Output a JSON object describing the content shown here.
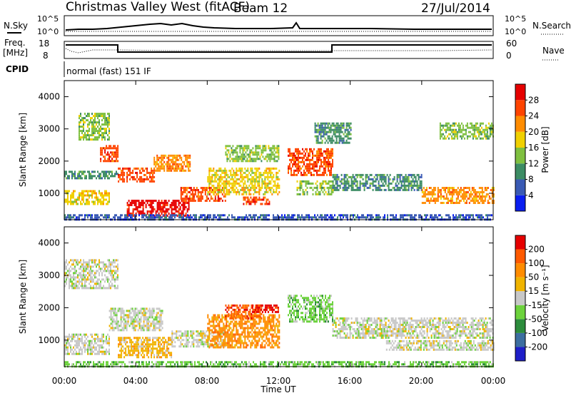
{
  "header": {
    "station": "Christmas Valley West (fitACF)",
    "beam": "Beam 12",
    "date": "27/Jul/2014"
  },
  "top_panels": {
    "nsky_label": "N.Sky",
    "nsky_ticks": [
      "10^5",
      "10^0"
    ],
    "nsearch_label": "N.Search",
    "nsearch_ticks": [
      "10^5",
      "10^0"
    ],
    "freq_label_1": "Freq.",
    "freq_label_2": "[MHz]",
    "freq_ticks": [
      "18",
      "8"
    ],
    "nave_label": "Nave",
    "nave_ticks": [
      "60",
      "0"
    ],
    "cpid_label": "CPID",
    "cpid_value": "normal (fast) 151 IF"
  },
  "colors": {
    "power_scale": [
      "#0a1ef0",
      "#3a5ab4",
      "#3c8c64",
      "#7fc040",
      "#f0d000",
      "#ff8c00",
      "#ff4400",
      "#e60000"
    ],
    "velocity_scale": [
      "#1e1ec8",
      "#3c6ea0",
      "#2c8c3c",
      "#6cd23c",
      "#c8c8c8",
      "#f0b400",
      "#ff8c00",
      "#ff5a00",
      "#e60000"
    ]
  },
  "chart_data": [
    {
      "type": "heatmap",
      "name": "Power",
      "ylabel": "Slant Range [km]",
      "colorbar_label": "Power [dB]",
      "colorbar_ticks": [
        "28",
        "24",
        "20",
        "16",
        "12",
        "8",
        "4"
      ],
      "x_ticks": [
        "00:00",
        "04:00",
        "08:00",
        "12:00",
        "16:00",
        "20:00",
        "00:00"
      ],
      "y_ticks": [
        "4000",
        "3000",
        "2000",
        "1000"
      ],
      "xlim_hours": [
        0,
        24
      ],
      "ylim_km": [
        180,
        4500
      ],
      "regions": [
        {
          "t": [
            0.0,
            3.0
          ],
          "r": [
            1500,
            1700
          ],
          "level": 2
        },
        {
          "t": [
            0.0,
            2.5
          ],
          "r": [
            700,
            1100
          ],
          "level": 4
        },
        {
          "t": [
            0.8,
            2.5
          ],
          "r": [
            2700,
            3500
          ],
          "level": 3
        },
        {
          "t": [
            2.0,
            3.0
          ],
          "r": [
            2000,
            2500
          ],
          "level": 6
        },
        {
          "t": [
            3.0,
            5.0
          ],
          "r": [
            1400,
            1800
          ],
          "level": 6
        },
        {
          "t": [
            3.5,
            7.0
          ],
          "r": [
            300,
            800
          ],
          "level": 7
        },
        {
          "t": [
            5.0,
            7.0
          ],
          "r": [
            1700,
            2200
          ],
          "level": 5
        },
        {
          "t": [
            6.5,
            9.0
          ],
          "r": [
            800,
            1200
          ],
          "level": 6
        },
        {
          "t": [
            8.0,
            12.0
          ],
          "r": [
            1000,
            1800
          ],
          "level": 4
        },
        {
          "t": [
            9.0,
            12.0
          ],
          "r": [
            2000,
            2500
          ],
          "level": 3
        },
        {
          "t": [
            10.0,
            11.5
          ],
          "r": [
            700,
            900
          ],
          "level": 6
        },
        {
          "t": [
            12.5,
            15.0
          ],
          "r": [
            1600,
            2400
          ],
          "level": 6
        },
        {
          "t": [
            13.0,
            15.0
          ],
          "r": [
            1000,
            1400
          ],
          "level": 3
        },
        {
          "t": [
            15.0,
            20.0
          ],
          "r": [
            1100,
            1600
          ],
          "level": 2
        },
        {
          "t": [
            14.0,
            16.0
          ],
          "r": [
            2600,
            3200
          ],
          "level": 2
        },
        {
          "t": [
            20.0,
            24.0
          ],
          "r": [
            700,
            1200
          ],
          "level": 5
        },
        {
          "t": [
            21.0,
            24.0
          ],
          "r": [
            2700,
            3200
          ],
          "level": 3
        },
        {
          "t": [
            0.0,
            24.0
          ],
          "r": [
            180,
            350
          ],
          "level": 1
        }
      ]
    },
    {
      "type": "heatmap",
      "name": "Velocity",
      "ylabel": "Slant Range [km]",
      "colorbar_label": "Velocity [m s⁻¹]",
      "colorbar_ticks": [
        "200",
        "100",
        "50",
        "15",
        "-15",
        "-50",
        "-100",
        "-200"
      ],
      "x_ticks": [
        "00:00",
        "04:00",
        "08:00",
        "12:00",
        "16:00",
        "20:00",
        "00:00"
      ],
      "y_ticks": [
        "4000",
        "3000",
        "2000",
        "1000"
      ],
      "xlabel": "Time UT",
      "xlim_hours": [
        0,
        24
      ],
      "ylim_km": [
        180,
        4500
      ],
      "regions": [
        {
          "t": [
            0.0,
            3.0
          ],
          "r": [
            2600,
            3500
          ],
          "level": 4
        },
        {
          "t": [
            0.0,
            2.5
          ],
          "r": [
            600,
            1200
          ],
          "level": 4
        },
        {
          "t": [
            2.5,
            5.5
          ],
          "r": [
            1300,
            2000
          ],
          "level": 4
        },
        {
          "t": [
            3.0,
            6.0
          ],
          "r": [
            500,
            1100
          ],
          "level": 5
        },
        {
          "t": [
            6.0,
            9.0
          ],
          "r": [
            800,
            1300
          ],
          "level": 4
        },
        {
          "t": [
            8.0,
            12.0
          ],
          "r": [
            800,
            1800
          ],
          "level": 6
        },
        {
          "t": [
            9.0,
            11.0
          ],
          "r": [
            1700,
            2100
          ],
          "level": 7
        },
        {
          "t": [
            10.5,
            12.0
          ],
          "r": [
            1900,
            2100
          ],
          "level": 8
        },
        {
          "t": [
            12.5,
            15.0
          ],
          "r": [
            1600,
            2400
          ],
          "level": 3
        },
        {
          "t": [
            15.0,
            24.0
          ],
          "r": [
            1100,
            1700
          ],
          "level": 4
        },
        {
          "t": [
            18.0,
            24.0
          ],
          "r": [
            700,
            1000
          ],
          "level": 4
        },
        {
          "t": [
            0.0,
            24.0
          ],
          "r": [
            180,
            350
          ],
          "level": 3
        }
      ]
    }
  ]
}
